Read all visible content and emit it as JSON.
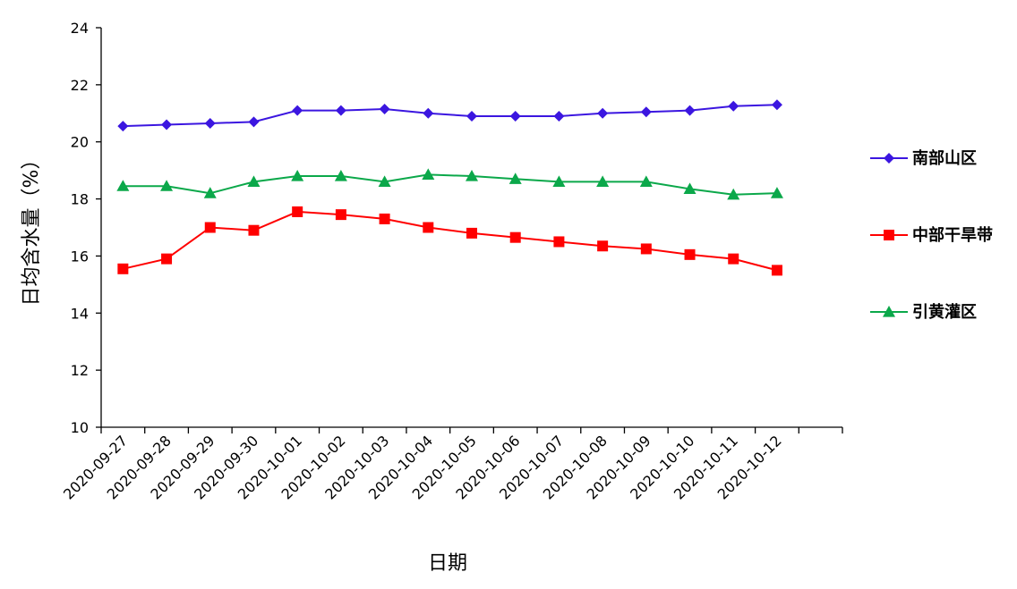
{
  "chart_data": {
    "type": "line",
    "title": "",
    "xlabel": "日期",
    "ylabel": "日均含水量（%）",
    "ylim": [
      10,
      24
    ],
    "yticks": [
      10,
      12,
      14,
      16,
      18,
      20,
      22,
      24
    ],
    "grid": false,
    "legend_position": "right",
    "categories": [
      "2020-09-27",
      "2020-09-28",
      "2020-09-29",
      "2020-09-30",
      "2020-10-01",
      "2020-10-02",
      "2020-10-03",
      "2020-10-04",
      "2020-10-05",
      "2020-10-06",
      "2020-10-07",
      "2020-10-08",
      "2020-10-09",
      "2020-10-10",
      "2020-10-11",
      "2020-10-12"
    ],
    "series": [
      {
        "name": "南部山区",
        "color": "#3B16E0",
        "marker": "diamond",
        "values": [
          20.55,
          20.6,
          20.65,
          20.7,
          21.1,
          21.1,
          21.15,
          21.0,
          20.9,
          20.9,
          20.9,
          21.0,
          21.05,
          21.1,
          21.25,
          21.3
        ]
      },
      {
        "name": "中部干旱带",
        "color": "#FF0000",
        "marker": "square",
        "values": [
          15.55,
          15.9,
          17.0,
          16.9,
          17.55,
          17.45,
          17.3,
          17.0,
          16.8,
          16.65,
          16.5,
          16.35,
          16.25,
          16.05,
          15.9,
          15.5
        ]
      },
      {
        "name": "引黄灌区",
        "color": "#0BA84A",
        "marker": "triangle",
        "values": [
          18.45,
          18.45,
          18.2,
          18.6,
          18.8,
          18.8,
          18.6,
          18.85,
          18.8,
          18.7,
          18.6,
          18.6,
          18.6,
          18.35,
          18.15,
          18.2
        ]
      }
    ]
  }
}
